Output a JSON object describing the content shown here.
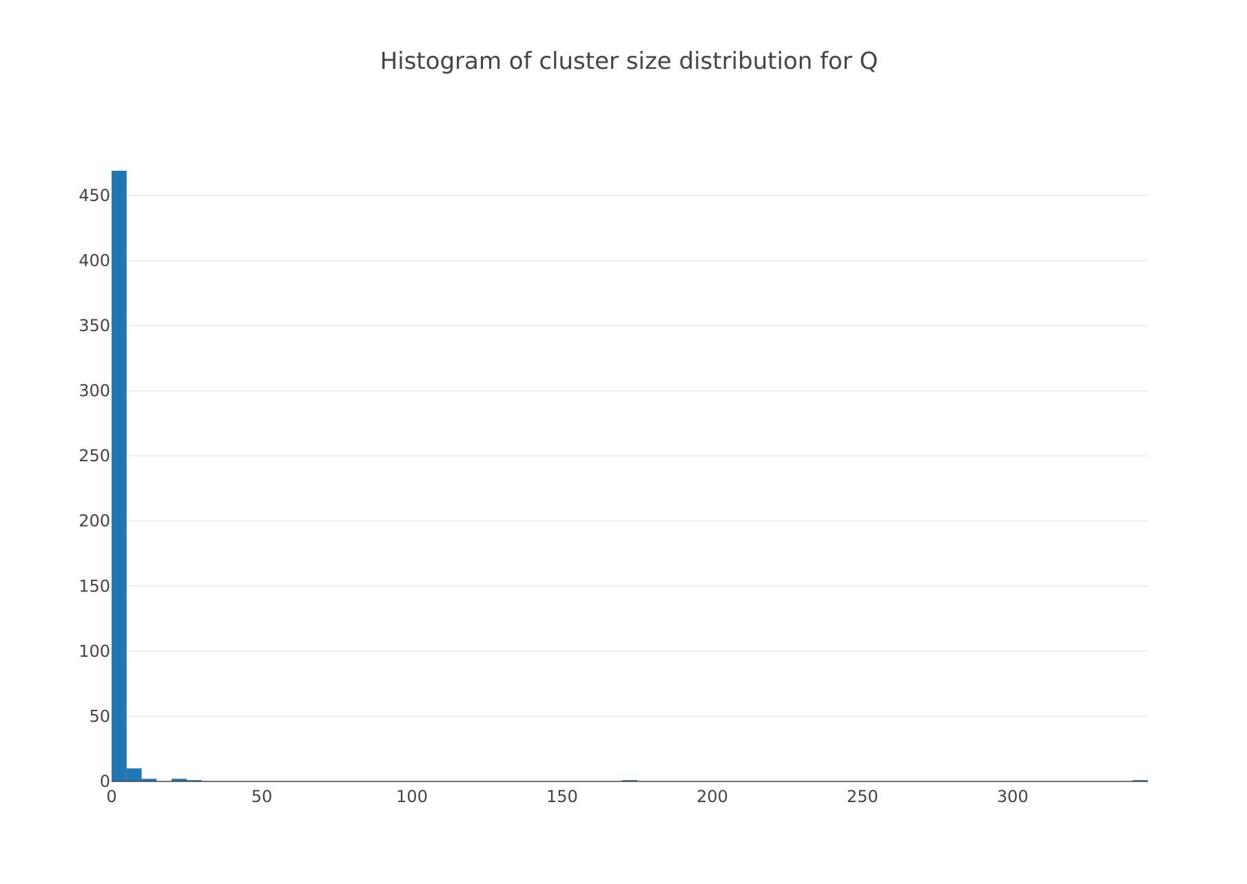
{
  "chart_data": {
    "type": "bar",
    "title": "Histogram of cluster size distribution for Q",
    "xlabel": "",
    "ylabel": "",
    "bin_width": 5,
    "bins": [
      {
        "x0": 0,
        "x1": 5,
        "count": 469
      },
      {
        "x0": 5,
        "x1": 10,
        "count": 10
      },
      {
        "x0": 10,
        "x1": 15,
        "count": 2
      },
      {
        "x0": 20,
        "x1": 25,
        "count": 2
      },
      {
        "x0": 25,
        "x1": 30,
        "count": 1
      },
      {
        "x0": 170,
        "x1": 175,
        "count": 1
      },
      {
        "x0": 340,
        "x1": 345,
        "count": 1
      }
    ],
    "xlim": [
      0,
      345
    ],
    "ylim": [
      0,
      469
    ],
    "x_ticks": [
      0,
      50,
      100,
      150,
      200,
      250,
      300
    ],
    "y_ticks": [
      0,
      50,
      100,
      150,
      200,
      250,
      300,
      350,
      400,
      450
    ],
    "bar_color": "#1f77b4",
    "grid": true,
    "legend": "none"
  }
}
